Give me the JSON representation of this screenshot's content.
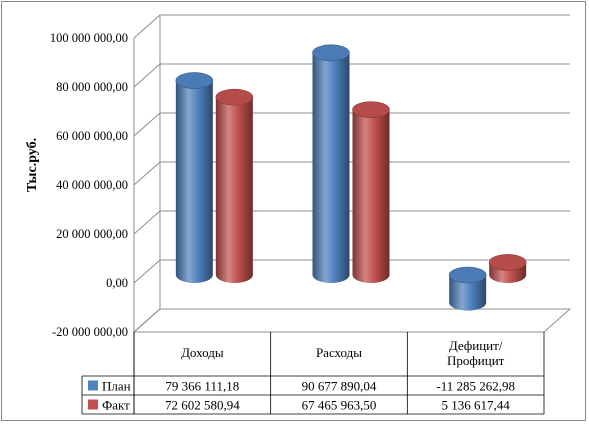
{
  "chart_data": {
    "type": "bar",
    "style": "3d-cylinder",
    "ylabel": "Тыс.руб.",
    "ylim": [
      -20000000,
      100000000
    ],
    "yticks": [
      -20000000,
      0,
      20000000,
      40000000,
      60000000,
      80000000,
      100000000
    ],
    "ytick_labels": [
      "-20 000 000,00",
      "0,00",
      "20 000 000,00",
      "40 000 000,00",
      "60 000 000,00",
      "80 000 000,00",
      "100 000 000,00"
    ],
    "categories": [
      "Доходы",
      "Расходы",
      "Дефицит/\nПрофицит"
    ],
    "series": [
      {
        "name": "План",
        "values": [
          79366111.18,
          90677890.04,
          -11285262.98
        ],
        "labels": [
          "79 366 111,18",
          "90 677 890,04",
          "-11 285 262,98"
        ],
        "color": "#4f81bd"
      },
      {
        "name": "Факт",
        "values": [
          72602580.94,
          67465963.5,
          5136617.44
        ],
        "labels": [
          "72 602 580,94",
          "67 465 963,50",
          "5 136 617,44"
        ],
        "color": "#c0504d"
      }
    ],
    "grid": true,
    "legend": "data-table"
  }
}
